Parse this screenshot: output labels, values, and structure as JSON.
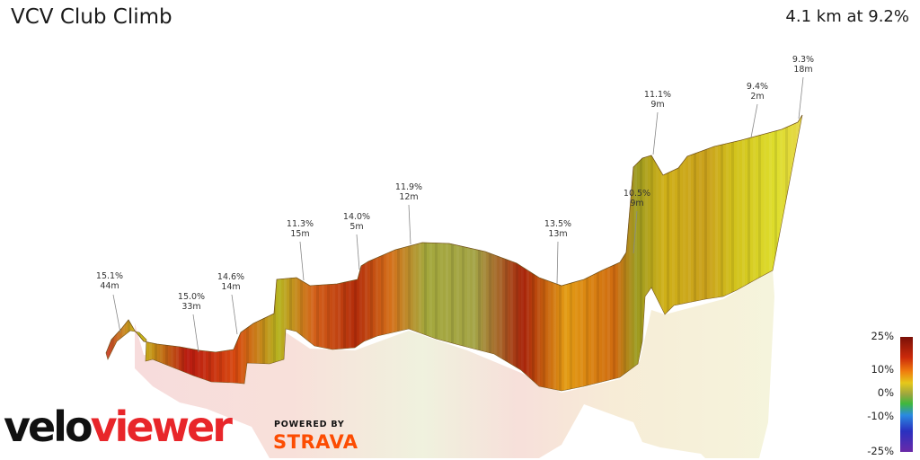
{
  "header": {
    "title": "VCV Club Climb",
    "summary": "4.1 km at 9.2%"
  },
  "branding": {
    "logo_part1": "velo",
    "logo_part2": "viewer",
    "powered_by": "POWERED BY",
    "strava": "STRAVA",
    "strava_color": "#fc4c02",
    "veloviewer_color": "#e8262a"
  },
  "chart_data": {
    "type": "area",
    "description_style": "3D gradient-coloured elevation profile ribbon",
    "segments": [
      {
        "gradient": "15.1%",
        "length": "44m"
      },
      {
        "gradient": "15.0%",
        "length": "33m"
      },
      {
        "gradient": "14.6%",
        "length": "14m"
      },
      {
        "gradient": "11.3%",
        "length": "15m"
      },
      {
        "gradient": "14.0%",
        "length": "5m"
      },
      {
        "gradient": "11.9%",
        "length": "12m"
      },
      {
        "gradient": "13.5%",
        "length": "13m"
      },
      {
        "gradient": "10.5%",
        "length": "9m"
      },
      {
        "gradient": "11.1%",
        "length": "9m"
      },
      {
        "gradient": "9.4%",
        "length": "2m"
      },
      {
        "gradient": "9.3%",
        "length": "18m"
      }
    ],
    "color_scale": {
      "labels": [
        "25%",
        "10%",
        "0%",
        "-10%",
        "-25%"
      ],
      "values": [
        25,
        10,
        0,
        -10,
        -25
      ],
      "colors": [
        "#7a1008",
        "#cc2a0a",
        "#f07d0e",
        "#e6c81a",
        "#9aa640",
        "#3fb83c",
        "#2a8ae0",
        "#2a30c0",
        "#6a2aa8"
      ]
    },
    "grid": false,
    "legend": "right"
  }
}
